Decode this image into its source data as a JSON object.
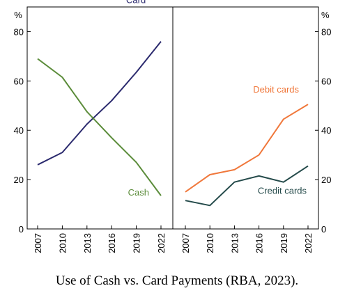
{
  "caption": "Use of Cash vs. Card Payments (RBA, 2023).",
  "chart_data": [
    {
      "type": "line",
      "panel": "left",
      "x": [
        2007,
        2010,
        2013,
        2016,
        2019,
        2022
      ],
      "ylim": [
        0,
        90
      ],
      "yticks": [
        0,
        20,
        40,
        60,
        80
      ],
      "unit_label": "%",
      "grid": false,
      "series": [
        {
          "name": "Card",
          "color": "#2b2a6e",
          "values": [
            26,
            31,
            42.5,
            52,
            63.5,
            76
          ]
        },
        {
          "name": "Cash",
          "color": "#5b8c3a",
          "values": [
            69,
            61.5,
            47.5,
            37,
            27,
            13.5
          ]
        }
      ]
    },
    {
      "type": "line",
      "panel": "right",
      "x": [
        2007,
        2010,
        2013,
        2016,
        2019,
        2022
      ],
      "ylim": [
        0,
        90
      ],
      "yticks": [
        0,
        20,
        40,
        60,
        80
      ],
      "unit_label": "%",
      "grid": false,
      "series": [
        {
          "name": "Debit cards",
          "color": "#f0773a",
          "values": [
            15,
            22,
            24,
            30,
            44.5,
            50.5
          ]
        },
        {
          "name": "Credit cards",
          "color": "#244a4a",
          "values": [
            11.5,
            9.5,
            19,
            21.5,
            19,
            25.5
          ]
        }
      ]
    }
  ]
}
